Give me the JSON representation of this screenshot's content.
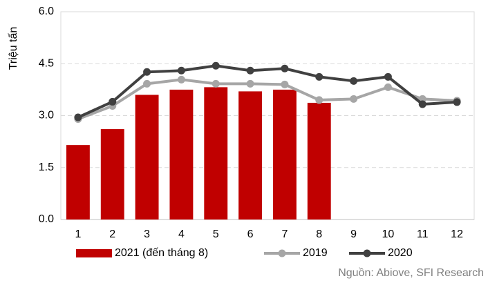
{
  "chart_data": {
    "type": "bar",
    "ylabel": "Triệu tấn",
    "source": "Nguồn: Abiove, SFI Research",
    "categories": [
      "1",
      "2",
      "3",
      "4",
      "5",
      "6",
      "7",
      "8",
      "9",
      "10",
      "11",
      "12"
    ],
    "series": [
      {
        "name": "2021 (đến tháng 8)",
        "type": "bar",
        "color": "#c00000",
        "values": [
          2.15,
          2.61,
          3.6,
          3.75,
          3.82,
          3.7,
          3.75,
          3.37,
          null,
          null,
          null,
          null
        ]
      },
      {
        "name": "2019",
        "type": "line",
        "color": "#a6a6a6",
        "values": [
          2.9,
          3.28,
          3.92,
          4.04,
          3.92,
          3.92,
          3.9,
          3.45,
          3.48,
          3.82,
          3.48,
          3.43
        ]
      },
      {
        "name": "2020",
        "type": "line",
        "color": "#404040",
        "values": [
          2.95,
          3.4,
          4.26,
          4.3,
          4.44,
          4.3,
          4.36,
          4.12,
          4.0,
          4.12,
          3.33,
          3.39
        ]
      }
    ],
    "ylim": [
      0,
      6
    ],
    "yticks": [
      {
        "value": 0,
        "label": "0.0"
      },
      {
        "value": 1.5,
        "label": "1.5"
      },
      {
        "value": 3,
        "label": "3.0"
      },
      {
        "value": 4.5,
        "label": "4.5"
      },
      {
        "value": 6,
        "label": "6.0"
      }
    ],
    "grid": true
  }
}
